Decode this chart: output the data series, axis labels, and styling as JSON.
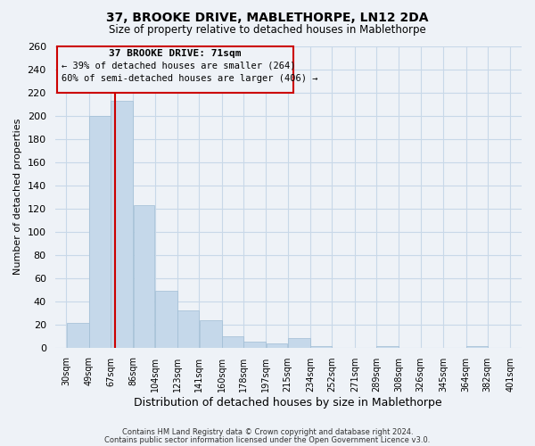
{
  "title1": "37, BROOKE DRIVE, MABLETHORPE, LN12 2DA",
  "title2": "Size of property relative to detached houses in Mablethorpe",
  "xlabel": "Distribution of detached houses by size in Mablethorpe",
  "ylabel": "Number of detached properties",
  "bar_values": [
    21,
    200,
    213,
    123,
    49,
    32,
    24,
    10,
    5,
    4,
    8,
    1,
    0,
    0,
    1,
    0,
    0,
    0,
    1,
    0
  ],
  "bin_edges": [
    30,
    49,
    67,
    86,
    104,
    123,
    141,
    160,
    178,
    197,
    215,
    234,
    252,
    271,
    289,
    308,
    326,
    345,
    364,
    382,
    401
  ],
  "tick_labels": [
    "30sqm",
    "49sqm",
    "67sqm",
    "86sqm",
    "104sqm",
    "123sqm",
    "141sqm",
    "160sqm",
    "178sqm",
    "197sqm",
    "215sqm",
    "234sqm",
    "252sqm",
    "271sqm",
    "289sqm",
    "308sqm",
    "326sqm",
    "345sqm",
    "364sqm",
    "382sqm",
    "401sqm"
  ],
  "bar_color": "#c5d8ea",
  "bar_edge_color": "#a0bdd4",
  "ref_line_x": 71,
  "ref_line_color": "#cc0000",
  "ylim": [
    0,
    260
  ],
  "yticks": [
    0,
    20,
    40,
    60,
    80,
    100,
    120,
    140,
    160,
    180,
    200,
    220,
    240,
    260
  ],
  "annotation_title": "37 BROOKE DRIVE: 71sqm",
  "annotation_line1": "← 39% of detached houses are smaller (264)",
  "annotation_line2": "60% of semi-detached houses are larger (406) →",
  "footer1": "Contains HM Land Registry data © Crown copyright and database right 2024.",
  "footer2": "Contains public sector information licensed under the Open Government Licence v3.0.",
  "bg_color": "#eef2f7",
  "plot_bg_color": "#eef2f7",
  "grid_color": "#c8d8e8",
  "annotation_border_color": "#cc0000",
  "annotation_bg_color": "#eef2f7"
}
